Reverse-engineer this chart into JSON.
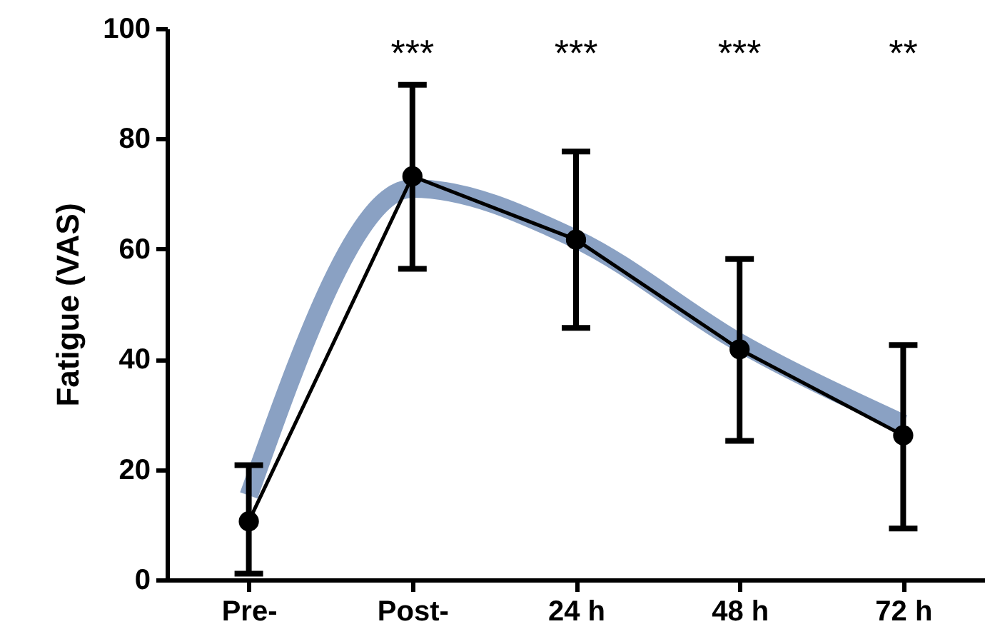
{
  "chart_data": {
    "type": "line",
    "ylabel": "Fatigue (VAS)",
    "categories": [
      "Pre-",
      "Post-",
      "24 h",
      "48 h",
      "72 h"
    ],
    "ylim": [
      0,
      100
    ],
    "yticks": [
      0,
      20,
      40,
      60,
      80,
      100
    ],
    "grid": false,
    "marker": "circle",
    "line_style": "solid",
    "series": [
      {
        "type": "line",
        "color": "#000000",
        "values": [
          10.6,
          73.2,
          61.7,
          41.8,
          26.2
        ],
        "errors": [
          [
            1.1,
            20.8
          ],
          [
            56.4,
            89.8
          ],
          [
            45.7,
            77.7
          ],
          [
            25.2,
            58.2
          ],
          [
            9.3,
            42.6
          ]
        ]
      },
      {
        "type": "line",
        "color": "#7590b8",
        "marker": "none",
        "values": [
          15.3,
          71,
          61.8,
          43,
          28.3
        ]
      }
    ],
    "annotations": [
      "***",
      "***",
      "***",
      "**"
    ]
  }
}
